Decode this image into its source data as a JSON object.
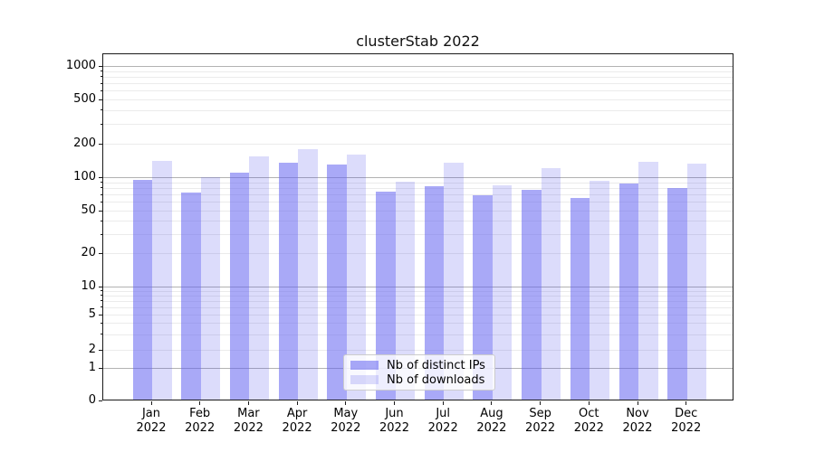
{
  "chart_data": {
    "type": "bar",
    "title": "clusterStab 2022",
    "yscale": "symlog",
    "grid": "on",
    "categories": [
      "Jan",
      "Feb",
      "Mar",
      "Apr",
      "May",
      "Jun",
      "Jul",
      "Aug",
      "Sep",
      "Oct",
      "Nov",
      "Dec"
    ],
    "x_tick_second_line": "2022",
    "y_ticks": [
      0,
      1,
      2,
      5,
      10,
      20,
      50,
      100,
      200,
      500,
      1000
    ],
    "ylim": [
      0,
      1300
    ],
    "series": [
      {
        "name": "Nb of distinct IPs",
        "values": [
          93,
          72,
          107,
          133,
          128,
          73,
          81,
          68,
          76,
          64,
          86,
          79
        ]
      },
      {
        "name": "Nb of downloads",
        "values": [
          138,
          99,
          151,
          176,
          157,
          89,
          133,
          83,
          119,
          91,
          136,
          131
        ]
      }
    ],
    "legend": {
      "position": "lower center",
      "entries": [
        "Nb of distinct IPs",
        "Nb of downloads"
      ]
    }
  },
  "colors": {
    "bar_distinct_ips": "rgba(98,98,241,0.55)",
    "bar_downloads": "rgba(60,60,235,0.18)",
    "grid_major": "#b2b2b2",
    "grid_minor": "#ebebeb",
    "axis": "#1a1a1a",
    "background": "#ffffff"
  }
}
